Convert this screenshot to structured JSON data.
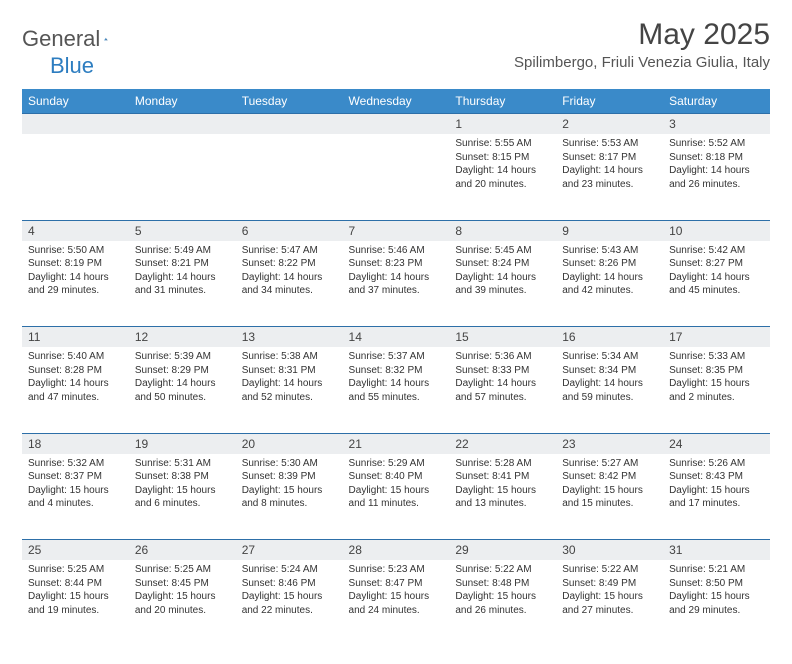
{
  "logo": {
    "a": "General",
    "b": "Blue"
  },
  "title": "May 2025",
  "location": "Spilimbergo, Friuli Venezia Giulia, Italy",
  "colors": {
    "header_bg": "#3a8ac9",
    "header_text": "#ffffff",
    "daynum_bg": "#eceef0",
    "row_border": "#2d6fa8",
    "body_text": "#333333",
    "title_text": "#444444",
    "logo_gray": "#555555",
    "logo_blue": "#2d7dc0"
  },
  "day_headers": [
    "Sunday",
    "Monday",
    "Tuesday",
    "Wednesday",
    "Thursday",
    "Friday",
    "Saturday"
  ],
  "weeks": [
    [
      {
        "n": "",
        "lines": [
          "",
          "",
          "",
          ""
        ]
      },
      {
        "n": "",
        "lines": [
          "",
          "",
          "",
          ""
        ]
      },
      {
        "n": "",
        "lines": [
          "",
          "",
          "",
          ""
        ]
      },
      {
        "n": "",
        "lines": [
          "",
          "",
          "",
          ""
        ]
      },
      {
        "n": "1",
        "lines": [
          "Sunrise: 5:55 AM",
          "Sunset: 8:15 PM",
          "Daylight: 14 hours",
          "and 20 minutes."
        ]
      },
      {
        "n": "2",
        "lines": [
          "Sunrise: 5:53 AM",
          "Sunset: 8:17 PM",
          "Daylight: 14 hours",
          "and 23 minutes."
        ]
      },
      {
        "n": "3",
        "lines": [
          "Sunrise: 5:52 AM",
          "Sunset: 8:18 PM",
          "Daylight: 14 hours",
          "and 26 minutes."
        ]
      }
    ],
    [
      {
        "n": "4",
        "lines": [
          "Sunrise: 5:50 AM",
          "Sunset: 8:19 PM",
          "Daylight: 14 hours",
          "and 29 minutes."
        ]
      },
      {
        "n": "5",
        "lines": [
          "Sunrise: 5:49 AM",
          "Sunset: 8:21 PM",
          "Daylight: 14 hours",
          "and 31 minutes."
        ]
      },
      {
        "n": "6",
        "lines": [
          "Sunrise: 5:47 AM",
          "Sunset: 8:22 PM",
          "Daylight: 14 hours",
          "and 34 minutes."
        ]
      },
      {
        "n": "7",
        "lines": [
          "Sunrise: 5:46 AM",
          "Sunset: 8:23 PM",
          "Daylight: 14 hours",
          "and 37 minutes."
        ]
      },
      {
        "n": "8",
        "lines": [
          "Sunrise: 5:45 AM",
          "Sunset: 8:24 PM",
          "Daylight: 14 hours",
          "and 39 minutes."
        ]
      },
      {
        "n": "9",
        "lines": [
          "Sunrise: 5:43 AM",
          "Sunset: 8:26 PM",
          "Daylight: 14 hours",
          "and 42 minutes."
        ]
      },
      {
        "n": "10",
        "lines": [
          "Sunrise: 5:42 AM",
          "Sunset: 8:27 PM",
          "Daylight: 14 hours",
          "and 45 minutes."
        ]
      }
    ],
    [
      {
        "n": "11",
        "lines": [
          "Sunrise: 5:40 AM",
          "Sunset: 8:28 PM",
          "Daylight: 14 hours",
          "and 47 minutes."
        ]
      },
      {
        "n": "12",
        "lines": [
          "Sunrise: 5:39 AM",
          "Sunset: 8:29 PM",
          "Daylight: 14 hours",
          "and 50 minutes."
        ]
      },
      {
        "n": "13",
        "lines": [
          "Sunrise: 5:38 AM",
          "Sunset: 8:31 PM",
          "Daylight: 14 hours",
          "and 52 minutes."
        ]
      },
      {
        "n": "14",
        "lines": [
          "Sunrise: 5:37 AM",
          "Sunset: 8:32 PM",
          "Daylight: 14 hours",
          "and 55 minutes."
        ]
      },
      {
        "n": "15",
        "lines": [
          "Sunrise: 5:36 AM",
          "Sunset: 8:33 PM",
          "Daylight: 14 hours",
          "and 57 minutes."
        ]
      },
      {
        "n": "16",
        "lines": [
          "Sunrise: 5:34 AM",
          "Sunset: 8:34 PM",
          "Daylight: 14 hours",
          "and 59 minutes."
        ]
      },
      {
        "n": "17",
        "lines": [
          "Sunrise: 5:33 AM",
          "Sunset: 8:35 PM",
          "Daylight: 15 hours",
          "and 2 minutes."
        ]
      }
    ],
    [
      {
        "n": "18",
        "lines": [
          "Sunrise: 5:32 AM",
          "Sunset: 8:37 PM",
          "Daylight: 15 hours",
          "and 4 minutes."
        ]
      },
      {
        "n": "19",
        "lines": [
          "Sunrise: 5:31 AM",
          "Sunset: 8:38 PM",
          "Daylight: 15 hours",
          "and 6 minutes."
        ]
      },
      {
        "n": "20",
        "lines": [
          "Sunrise: 5:30 AM",
          "Sunset: 8:39 PM",
          "Daylight: 15 hours",
          "and 8 minutes."
        ]
      },
      {
        "n": "21",
        "lines": [
          "Sunrise: 5:29 AM",
          "Sunset: 8:40 PM",
          "Daylight: 15 hours",
          "and 11 minutes."
        ]
      },
      {
        "n": "22",
        "lines": [
          "Sunrise: 5:28 AM",
          "Sunset: 8:41 PM",
          "Daylight: 15 hours",
          "and 13 minutes."
        ]
      },
      {
        "n": "23",
        "lines": [
          "Sunrise: 5:27 AM",
          "Sunset: 8:42 PM",
          "Daylight: 15 hours",
          "and 15 minutes."
        ]
      },
      {
        "n": "24",
        "lines": [
          "Sunrise: 5:26 AM",
          "Sunset: 8:43 PM",
          "Daylight: 15 hours",
          "and 17 minutes."
        ]
      }
    ],
    [
      {
        "n": "25",
        "lines": [
          "Sunrise: 5:25 AM",
          "Sunset: 8:44 PM",
          "Daylight: 15 hours",
          "and 19 minutes."
        ]
      },
      {
        "n": "26",
        "lines": [
          "Sunrise: 5:25 AM",
          "Sunset: 8:45 PM",
          "Daylight: 15 hours",
          "and 20 minutes."
        ]
      },
      {
        "n": "27",
        "lines": [
          "Sunrise: 5:24 AM",
          "Sunset: 8:46 PM",
          "Daylight: 15 hours",
          "and 22 minutes."
        ]
      },
      {
        "n": "28",
        "lines": [
          "Sunrise: 5:23 AM",
          "Sunset: 8:47 PM",
          "Daylight: 15 hours",
          "and 24 minutes."
        ]
      },
      {
        "n": "29",
        "lines": [
          "Sunrise: 5:22 AM",
          "Sunset: 8:48 PM",
          "Daylight: 15 hours",
          "and 26 minutes."
        ]
      },
      {
        "n": "30",
        "lines": [
          "Sunrise: 5:22 AM",
          "Sunset: 8:49 PM",
          "Daylight: 15 hours",
          "and 27 minutes."
        ]
      },
      {
        "n": "31",
        "lines": [
          "Sunrise: 5:21 AM",
          "Sunset: 8:50 PM",
          "Daylight: 15 hours",
          "and 29 minutes."
        ]
      }
    ]
  ]
}
